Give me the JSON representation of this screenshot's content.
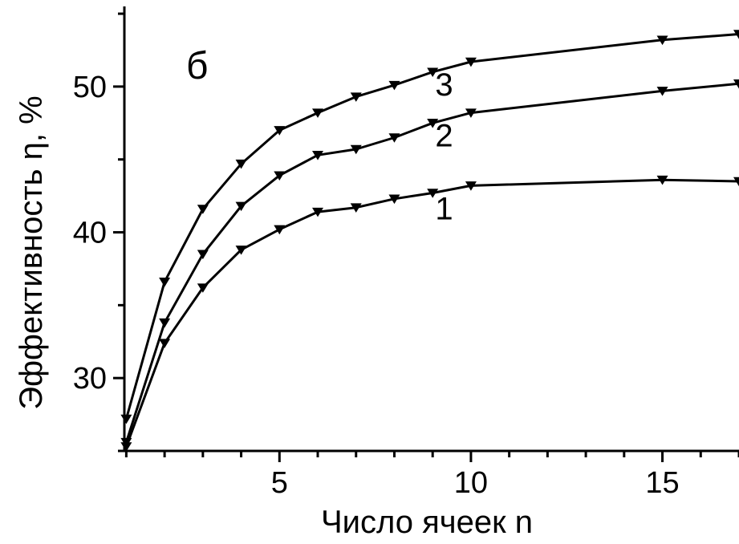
{
  "chart_data": {
    "type": "line",
    "panel_label": "б",
    "xlabel": "Число ячеек n",
    "ylabel": "Эффективность η, %",
    "xlim": [
      0.95,
      17.0
    ],
    "ylim": [
      25.0,
      55.5
    ],
    "x_ticks": [
      5,
      10,
      15
    ],
    "y_ticks": [
      30,
      40,
      50
    ],
    "x_minor_step": 1,
    "y_minor_step": 5,
    "grid": false,
    "marker": "down-triangle",
    "line_color": "#000000",
    "series": [
      {
        "name": "1",
        "x": [
          1,
          2,
          3,
          4,
          5,
          6,
          7,
          8,
          9,
          10,
          15,
          17
        ],
        "y": [
          25.3,
          32.4,
          36.2,
          38.8,
          40.2,
          41.4,
          41.7,
          42.3,
          42.7,
          43.2,
          43.6,
          43.5
        ]
      },
      {
        "name": "2",
        "x": [
          1,
          2,
          3,
          4,
          5,
          6,
          7,
          8,
          9,
          10,
          15,
          17
        ],
        "y": [
          25.6,
          33.8,
          38.5,
          41.8,
          43.9,
          45.3,
          45.7,
          46.5,
          47.5,
          48.2,
          49.7,
          50.2
        ]
      },
      {
        "name": "3",
        "x": [
          1,
          2,
          3,
          4,
          5,
          6,
          7,
          8,
          9,
          10,
          15,
          17
        ],
        "y": [
          27.2,
          36.6,
          41.6,
          44.7,
          47.0,
          48.2,
          49.3,
          50.1,
          51.0,
          51.7,
          53.2,
          53.6
        ]
      }
    ]
  }
}
